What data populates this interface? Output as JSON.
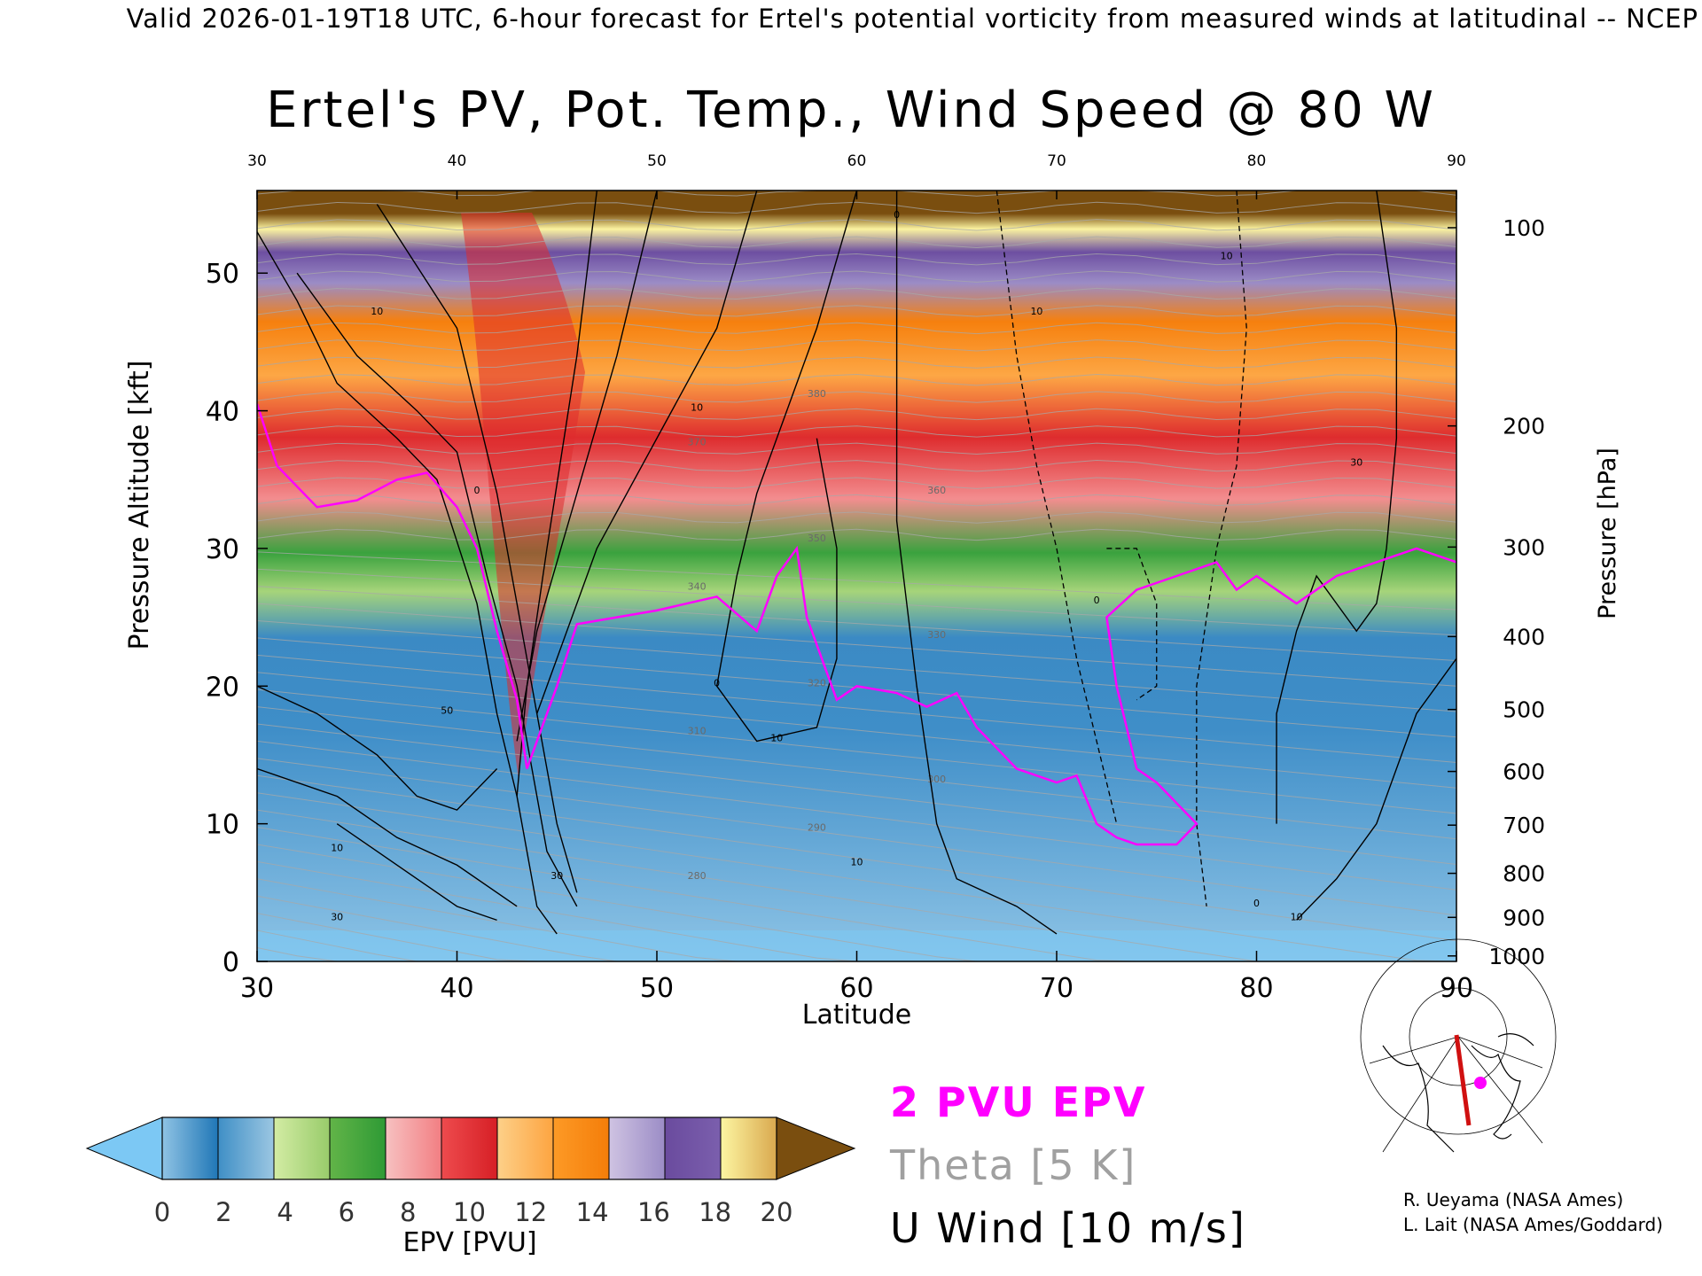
{
  "header": "Valid 2026-01-19T18 UTC, 6-hour forecast for Ertel's potential vorticity from measured winds at latitudinal -- NCEP",
  "chart_data": {
    "type": "heatmap",
    "title": "Ertel's PV, Pot. Temp., Wind Speed @ 80 W",
    "xlabel": "Latitude",
    "ylabel": "Pressure Altitude [kft]",
    "y2label": "Pressure [hPa]",
    "xlim": [
      30,
      90
    ],
    "ylim": [
      0,
      56
    ],
    "x_ticks": [
      30,
      40,
      50,
      60,
      70,
      80,
      90
    ],
    "top_ticks": [
      30,
      40,
      50,
      60,
      70,
      80,
      90
    ],
    "y_ticks": [
      0,
      10,
      20,
      30,
      40,
      50
    ],
    "y2_ticks": [
      {
        "label": "100",
        "kft": 53.3
      },
      {
        "label": "200",
        "kft": 38.9
      },
      {
        "label": "300",
        "kft": 30.1
      },
      {
        "label": "400",
        "kft": 23.6
      },
      {
        "label": "500",
        "kft": 18.3
      },
      {
        "label": "600",
        "kft": 13.8
      },
      {
        "label": "700",
        "kft": 9.9
      },
      {
        "label": "800",
        "kft": 6.4
      },
      {
        "label": "900",
        "kft": 3.2
      },
      {
        "label": "1000",
        "kft": 0.4
      }
    ],
    "colorbar": {
      "label": "EPV [PVU]",
      "ticks": [
        "0",
        "2",
        "4",
        "6",
        "8",
        "10",
        "12",
        "14",
        "16",
        "18",
        "20"
      ],
      "under_color": "#7cc8f4",
      "over_color": "#7a4e0f",
      "bins": [
        [
          "#8fc3e4",
          "#1f76b6"
        ],
        [
          "#3f8fc6",
          "#9cc7e2"
        ],
        [
          "#d3eca4",
          "#98cb6a"
        ],
        [
          "#62b448",
          "#2e9a35"
        ],
        [
          "#f7c1c1",
          "#f27e82"
        ],
        [
          "#ee4b4e",
          "#d61f25"
        ],
        [
          "#fdd089",
          "#fda440"
        ],
        [
          "#fd9a26",
          "#f47d09"
        ],
        [
          "#cfc3e2",
          "#9b8cc6"
        ],
        [
          "#6a4b9e",
          "#7b5fad"
        ],
        [
          "#fdf6a2",
          "#d9a84e"
        ]
      ]
    },
    "tropopause_contour_2pvu": [
      [
        30,
        40.5
      ],
      [
        31,
        36
      ],
      [
        33,
        33
      ],
      [
        35,
        33.5
      ],
      [
        37,
        35
      ],
      [
        38.5,
        35.5
      ],
      [
        40,
        33
      ],
      [
        41,
        30
      ],
      [
        42,
        24
      ],
      [
        43,
        19
      ],
      [
        43.5,
        14
      ],
      [
        45,
        20
      ],
      [
        46,
        24.5
      ],
      [
        50,
        25.5
      ],
      [
        53,
        26.5
      ],
      [
        55,
        24
      ],
      [
        56,
        28
      ],
      [
        57,
        30
      ],
      [
        57.5,
        25
      ],
      [
        59,
        19
      ],
      [
        60,
        20
      ],
      [
        62,
        19.5
      ],
      [
        63.5,
        18.5
      ],
      [
        65,
        19.5
      ],
      [
        66,
        17
      ],
      [
        68,
        14
      ],
      [
        70,
        13
      ],
      [
        71,
        13.5
      ],
      [
        72,
        10
      ],
      [
        73,
        9
      ],
      [
        74,
        8.5
      ],
      [
        76,
        8.5
      ],
      [
        77,
        10
      ],
      [
        75,
        13
      ],
      [
        74,
        14
      ],
      [
        73,
        20
      ],
      [
        72.5,
        25
      ],
      [
        74,
        27
      ],
      [
        76,
        28
      ],
      [
        78,
        29
      ],
      [
        79,
        27
      ],
      [
        80,
        28
      ],
      [
        82,
        26
      ],
      [
        84,
        28
      ],
      [
        86,
        29
      ],
      [
        88,
        30
      ],
      [
        90,
        29
      ]
    ],
    "isotach_labels": [
      "10",
      "30",
      "50",
      "0",
      "10",
      "30",
      "10",
      "0",
      "10",
      "10",
      "0",
      "10",
      "0",
      "10",
      "0",
      "10",
      "30"
    ],
    "isentrope_labels": [
      "280",
      "290",
      "300",
      "310",
      "320",
      "330",
      "340",
      "350",
      "360",
      "370",
      "380"
    ],
    "color_legend": {
      "epv_2pvu": "#ff00ff",
      "theta": "#a0a0a0",
      "wind": "#000000"
    }
  },
  "legend": {
    "pvu_label": "2 PVU EPV",
    "theta_label": "Theta [5 K]",
    "wind_label": "U Wind [10 m/s]"
  },
  "credits": {
    "line1": "R. Ueyama (NASA Ames)",
    "line2": "L. Lait (NASA Ames/Goddard)"
  },
  "inset_map": {
    "marker_color": "#ff00ff",
    "section_color": "#d01010"
  }
}
